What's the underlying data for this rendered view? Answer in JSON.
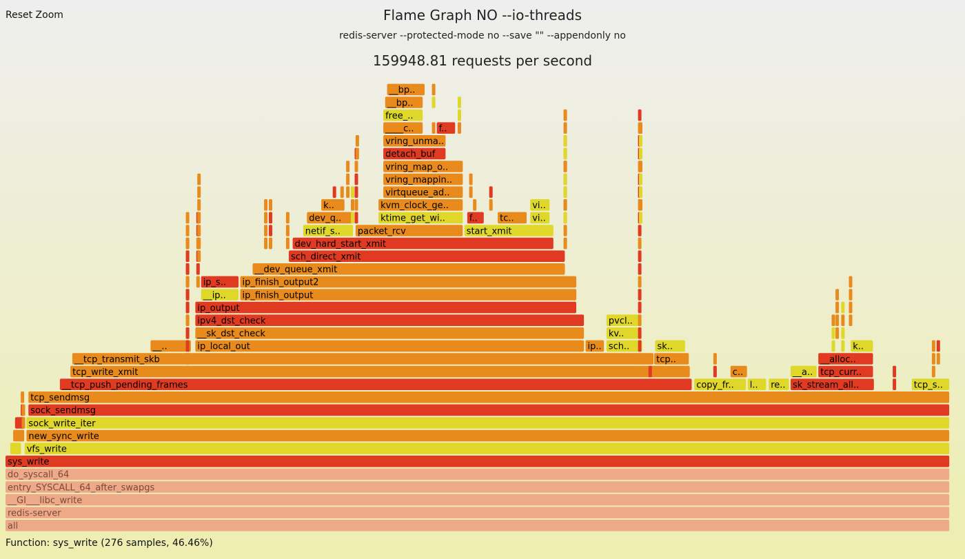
{
  "header": {
    "reset_zoom_label": "Reset Zoom",
    "title": "Flame Graph NO --io-threads",
    "subtitle": "redis-server --protected-mode no --save \"\" --appendonly no",
    "requests_per_second": "159948.81 requests per second"
  },
  "footer": {
    "details": "Function: sys_write (276 samples, 46.46%)"
  },
  "colors": {
    "red": "#e03a22",
    "orange": "#e88a1c",
    "yellow": "#dfd82a",
    "dark_orange": "#e55f1f",
    "salmon": "#eeaa88",
    "salmon_text": "#7a4a3a"
  },
  "chart_data": {
    "type": "flame",
    "total_samples_hint": "sys_write = 276 samples, 46.46%",
    "frames": [
      {
        "depth": 0,
        "name": "all",
        "label": "all",
        "start": 0.0,
        "width": 0.99,
        "color": "salmon"
      },
      {
        "depth": 1,
        "name": "redis-server",
        "label": "redis-server",
        "start": 0.0,
        "width": 0.99,
        "color": "salmon"
      },
      {
        "depth": 2,
        "name": "__GI___libc_write",
        "label": "__GI___libc_write",
        "start": 0.0,
        "width": 0.99,
        "color": "salmon"
      },
      {
        "depth": 3,
        "name": "entry_SYSCALL_64_after_swapgs",
        "label": "entry_SYSCALL_64_after_swapgs",
        "start": 0.0,
        "width": 0.99,
        "color": "salmon"
      },
      {
        "depth": 4,
        "name": "do_syscall_64",
        "label": "do_syscall_64",
        "start": 0.0,
        "width": 0.99,
        "color": "salmon"
      },
      {
        "depth": 5,
        "name": "sys_write",
        "label": "sys_write",
        "start": 0.0,
        "width": 0.99,
        "color": "red"
      },
      {
        "depth": 6,
        "name": "vfs_write",
        "label": "vfs_write",
        "start": 0.02,
        "width": 0.97,
        "color": "yellow"
      },
      {
        "depth": 6,
        "name": "",
        "label": "",
        "start": 0.005,
        "width": 0.012,
        "color": "yellow"
      },
      {
        "depth": 7,
        "name": "new_sync_write",
        "label": "new_sync_write",
        "start": 0.022,
        "width": 0.968,
        "color": "orange"
      },
      {
        "depth": 7,
        "name": "",
        "label": "",
        "start": 0.008,
        "width": 0.012,
        "color": "orange"
      },
      {
        "depth": 8,
        "name": "sock_write_iter",
        "label": "sock_write_iter",
        "start": 0.022,
        "width": 0.968,
        "color": "yellow"
      },
      {
        "depth": 8,
        "name": "",
        "label": "",
        "start": 0.01,
        "width": 0.01,
        "color": "red"
      },
      {
        "depth": 9,
        "name": "sock_sendmsg",
        "label": "sock_sendmsg",
        "start": 0.024,
        "width": 0.966,
        "color": "red"
      },
      {
        "depth": 10,
        "name": "tcp_sendmsg",
        "label": "tcp_sendmsg",
        "start": 0.024,
        "width": 0.966,
        "color": "orange"
      },
      {
        "depth": 11,
        "name": "__tcp_push_pending_frames",
        "label": "__tcp_push_pending_frames",
        "start": 0.057,
        "width": 0.663,
        "color": "red"
      },
      {
        "depth": 11,
        "name": "copy_from",
        "label": "copy_fr..",
        "start": 0.722,
        "width": 0.055,
        "color": "yellow"
      },
      {
        "depth": 11,
        "name": "l",
        "label": "l..",
        "start": 0.778,
        "width": 0.02,
        "color": "yellow"
      },
      {
        "depth": 11,
        "name": "re",
        "label": "re..",
        "start": 0.8,
        "width": 0.022,
        "color": "yellow"
      },
      {
        "depth": 11,
        "name": "sk_stream_alloc",
        "label": "sk_stream_all..",
        "start": 0.823,
        "width": 0.088,
        "color": "red"
      },
      {
        "depth": 11,
        "name": "tcp_s",
        "label": "tcp_s..",
        "start": 0.95,
        "width": 0.04,
        "color": "yellow"
      },
      {
        "depth": 12,
        "name": "tcp_write_xmit",
        "label": "tcp_write_xmit",
        "start": 0.068,
        "width": 0.65,
        "color": "orange"
      },
      {
        "depth": 12,
        "name": "c",
        "label": "c..",
        "start": 0.76,
        "width": 0.018,
        "color": "orange"
      },
      {
        "depth": 12,
        "name": "__a",
        "label": "__a..",
        "start": 0.823,
        "width": 0.028,
        "color": "yellow"
      },
      {
        "depth": 12,
        "name": "tcp_curr",
        "label": "tcp_curr..",
        "start": 0.852,
        "width": 0.058,
        "color": "red"
      },
      {
        "depth": 13,
        "name": "__tcp_transmit_skb",
        "label": "__tcp_transmit_skb",
        "start": 0.07,
        "width": 0.61,
        "color": "orange"
      },
      {
        "depth": 13,
        "name": "tcp",
        "label": "tcp..",
        "start": 0.68,
        "width": 0.037,
        "color": "orange"
      },
      {
        "depth": 13,
        "name": "__alloc",
        "label": "__alloc..",
        "start": 0.852,
        "width": 0.058,
        "color": "red"
      },
      {
        "depth": 14,
        "name": "__",
        "label": "__..",
        "start": 0.152,
        "width": 0.043,
        "color": "orange"
      },
      {
        "depth": 14,
        "name": "ip_local_out",
        "label": "ip_local_out",
        "start": 0.199,
        "width": 0.408,
        "color": "orange"
      },
      {
        "depth": 14,
        "name": "ip",
        "label": "ip..",
        "start": 0.608,
        "width": 0.02,
        "color": "orange"
      },
      {
        "depth": 14,
        "name": "sch",
        "label": "sch..",
        "start": 0.63,
        "width": 0.038,
        "color": "yellow"
      },
      {
        "depth": 14,
        "name": "sk",
        "label": "sk..",
        "start": 0.681,
        "width": 0.032,
        "color": "yellow"
      },
      {
        "depth": 14,
        "name": "k",
        "label": "k..",
        "start": 0.886,
        "width": 0.024,
        "color": "yellow"
      },
      {
        "depth": 15,
        "name": "__sk_dst_check",
        "label": "__sk_dst_check",
        "start": 0.199,
        "width": 0.408,
        "color": "orange"
      },
      {
        "depth": 15,
        "name": "kv",
        "label": "kv..",
        "start": 0.63,
        "width": 0.034,
        "color": "yellow"
      },
      {
        "depth": 16,
        "name": "ipv4_dst_check",
        "label": "ipv4_dst_check",
        "start": 0.199,
        "width": 0.408,
        "color": "red"
      },
      {
        "depth": 16,
        "name": "pvcl",
        "label": "pvcl..",
        "start": 0.63,
        "width": 0.036,
        "color": "yellow"
      },
      {
        "depth": 17,
        "name": "ip_output",
        "label": "ip_output",
        "start": 0.199,
        "width": 0.4,
        "color": "red"
      },
      {
        "depth": 18,
        "name": "__ip",
        "label": "__ip..",
        "start": 0.205,
        "width": 0.04,
        "color": "yellow"
      },
      {
        "depth": 18,
        "name": "ip_finish_output",
        "label": "ip_finish_output",
        "start": 0.246,
        "width": 0.353,
        "color": "orange"
      },
      {
        "depth": 19,
        "name": "ip_s",
        "label": "ip_s..",
        "start": 0.205,
        "width": 0.04,
        "color": "red"
      },
      {
        "depth": 19,
        "name": "ip_finish_output2",
        "label": "ip_finish_output2",
        "start": 0.246,
        "width": 0.353,
        "color": "orange"
      },
      {
        "depth": 20,
        "name": "__dev_queue_xmit",
        "label": "__dev_queue_xmit",
        "start": 0.259,
        "width": 0.328,
        "color": "orange"
      },
      {
        "depth": 21,
        "name": "sch_direct_xmit",
        "label": "sch_direct_xmit",
        "start": 0.297,
        "width": 0.29,
        "color": "red"
      },
      {
        "depth": 22,
        "name": "dev_hard_start_xmit",
        "label": "dev_hard_start_xmit",
        "start": 0.301,
        "width": 0.274,
        "color": "red"
      },
      {
        "depth": 23,
        "name": "netif_s",
        "label": "netif_s..",
        "start": 0.312,
        "width": 0.053,
        "color": "yellow"
      },
      {
        "depth": 23,
        "name": "packet_rcv",
        "label": "packet_rcv",
        "start": 0.367,
        "width": 0.113,
        "color": "orange"
      },
      {
        "depth": 23,
        "name": "start_xmit",
        "label": "start_xmit",
        "start": 0.481,
        "width": 0.094,
        "color": "yellow"
      },
      {
        "depth": 24,
        "name": "dev_q",
        "label": "dev_q..",
        "start": 0.316,
        "width": 0.049,
        "color": "orange"
      },
      {
        "depth": 24,
        "name": "ktime_get_wi",
        "label": "ktime_get_wi..",
        "start": 0.391,
        "width": 0.089,
        "color": "yellow"
      },
      {
        "depth": 24,
        "name": "f",
        "label": "f..",
        "start": 0.484,
        "width": 0.018,
        "color": "red"
      },
      {
        "depth": 24,
        "name": "tc",
        "label": "tc..",
        "start": 0.516,
        "width": 0.031,
        "color": "orange"
      },
      {
        "depth": 24,
        "name": "vi",
        "label": "vi..",
        "start": 0.55,
        "width": 0.021,
        "color": "yellow"
      },
      {
        "depth": 25,
        "name": "k",
        "label": "k..",
        "start": 0.331,
        "width": 0.025,
        "color": "orange"
      },
      {
        "depth": 25,
        "name": "kvm_clock_ge",
        "label": "kvm_clock_ge..",
        "start": 0.391,
        "width": 0.089,
        "color": "orange"
      },
      {
        "depth": 25,
        "name": "vi",
        "label": "vi..",
        "start": 0.55,
        "width": 0.021,
        "color": "yellow"
      },
      {
        "depth": 26,
        "name": "virtqueue_ad",
        "label": "virtqueue_ad..",
        "start": 0.396,
        "width": 0.084,
        "color": "orange"
      },
      {
        "depth": 27,
        "name": "vring_mappin",
        "label": "vring_mappin..",
        "start": 0.396,
        "width": 0.084,
        "color": "orange"
      },
      {
        "depth": 28,
        "name": "vring_map_o",
        "label": "vring_map_o..",
        "start": 0.396,
        "width": 0.084,
        "color": "orange"
      },
      {
        "depth": 29,
        "name": "detach_buf",
        "label": "detach_buf",
        "start": 0.396,
        "width": 0.066,
        "color": "red"
      },
      {
        "depth": 30,
        "name": "vring_unma",
        "label": "vring_unma..",
        "start": 0.396,
        "width": 0.066,
        "color": "orange"
      },
      {
        "depth": 31,
        "name": "____c",
        "label": "____c..",
        "start": 0.396,
        "width": 0.042,
        "color": "orange"
      },
      {
        "depth": 31,
        "name": "f",
        "label": "f..",
        "start": 0.452,
        "width": 0.02,
        "color": "red"
      },
      {
        "depth": 32,
        "name": "free",
        "label": "free_..",
        "start": 0.396,
        "width": 0.042,
        "color": "yellow"
      },
      {
        "depth": 33,
        "name": "__bp",
        "label": "__bp..",
        "start": 0.398,
        "width": 0.04,
        "color": "orange"
      },
      {
        "depth": 34,
        "name": "__bp",
        "label": "__bp..",
        "start": 0.4,
        "width": 0.04,
        "color": "orange"
      }
    ]
  }
}
